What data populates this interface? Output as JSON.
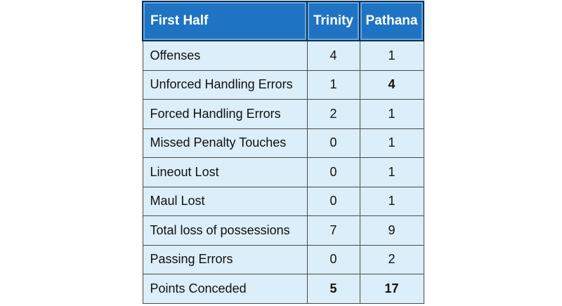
{
  "table": {
    "header": {
      "title": "First Half",
      "team1": "Trinity",
      "team2": "Pathana"
    },
    "rows": [
      {
        "label": "Offenses",
        "team1": "4",
        "team2": "1"
      },
      {
        "label": "Unforced Handling Errors",
        "team1": "1",
        "team2": "4"
      },
      {
        "label": "Forced Handling Errors",
        "team1": "2",
        "team2": "1"
      },
      {
        "label": "Missed Penalty Touches",
        "team1": "0",
        "team2": "1"
      },
      {
        "label": "Lineout Lost",
        "team1": "0",
        "team2": "1"
      },
      {
        "label": "Maul Lost",
        "team1": "0",
        "team2": "1"
      },
      {
        "label": "Total loss of possessions",
        "team1": "7",
        "team2": "9"
      },
      {
        "label": "Passing Errors",
        "team1": "0",
        "team2": "2"
      },
      {
        "label": "Points Conceded",
        "team1": "5",
        "team2": "17"
      }
    ],
    "colors": {
      "header_bg": "#1e74c2",
      "cell_bg": "#dbeef9",
      "highlight_red": "#d9242b",
      "highlight_green": "#1f9a48"
    }
  }
}
